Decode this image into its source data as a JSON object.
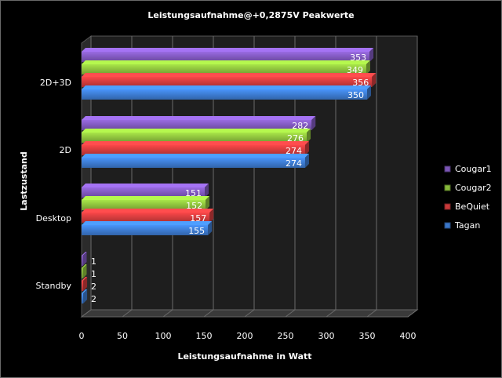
{
  "chart_data": {
    "type": "bar",
    "orientation": "horizontal",
    "style": "3d",
    "title": "Leistungsaufnahme@+0,2875V  Peakwerte",
    "xlabel": "Leistungsaufnahme in Watt",
    "ylabel": "Lastzustand",
    "xlim": [
      0,
      400
    ],
    "xticks": [
      "0",
      "50",
      "100",
      "150",
      "200",
      "250",
      "300",
      "350",
      "400"
    ],
    "categories": [
      "Standby",
      "Desktop",
      "2D",
      "2D+3D"
    ],
    "grid": true,
    "legend_position": "right",
    "series": [
      {
        "name": "Tagan",
        "color": "#3a76c8",
        "values": [
          2,
          155,
          274,
          350
        ]
      },
      {
        "name": "BeQuiet",
        "color": "#c8393a",
        "values": [
          2,
          157,
          274,
          356
        ]
      },
      {
        "name": "Cougar2",
        "color": "#86b83a",
        "values": [
          1,
          152,
          276,
          349
        ]
      },
      {
        "name": "Cougar1",
        "color": "#7a55b5",
        "values": [
          1,
          151,
          282,
          353
        ]
      }
    ],
    "legend_order": [
      "Cougar1",
      "Cougar2",
      "BeQuiet",
      "Tagan"
    ]
  }
}
